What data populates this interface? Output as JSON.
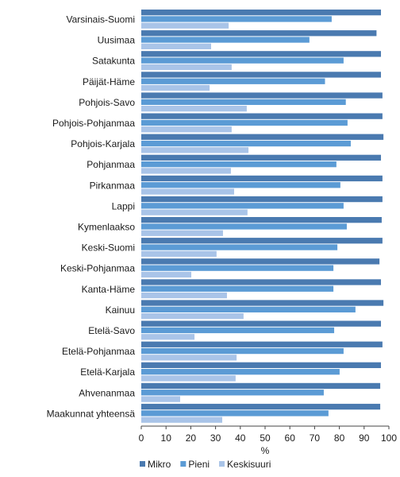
{
  "chart_data": {
    "type": "bar",
    "orientation": "horizontal",
    "categories": [
      "Varsinais-Suomi",
      "Uusimaa",
      "Satakunta",
      "Päijät-Häme",
      "Pohjois-Savo",
      "Pohjois-Pohjanmaa",
      "Pohjois-Karjala",
      "Pohjanmaa",
      "Pirkanmaa",
      "Lappi",
      "Kymenlaakso",
      "Keski-Suomi",
      "Keski-Pohjanmaa",
      "Kanta-Häme",
      "Kainuu",
      "Etelä-Savo",
      "Etelä-Pohjanmaa",
      "Etelä-Karjala",
      "Ahvenanmaa",
      "Maakunnat yhteensä"
    ],
    "series": [
      {
        "name": "Mikro",
        "color": "#4a7ab0",
        "values": [
          96.8,
          95,
          96.8,
          96.8,
          97.4,
          97.4,
          97.8,
          96.8,
          97.4,
          97.4,
          97.1,
          97.4,
          96.2,
          96.8,
          97.8,
          96.8,
          97.4,
          96.8,
          96.5,
          96.5
        ]
      },
      {
        "name": "Pieni",
        "color": "#5b9bd5",
        "values": [
          76.9,
          67.9,
          81.7,
          74.2,
          82.6,
          83.3,
          84.6,
          78.8,
          80.4,
          81.7,
          83,
          79.2,
          77.6,
          77.6,
          86.5,
          77.9,
          81.7,
          80.1,
          73.7,
          75.6
        ]
      },
      {
        "name": "Keskisuuri",
        "color": "#a9c4e8",
        "values": [
          35.3,
          28.2,
          36.5,
          27.6,
          42.6,
          36.5,
          43.3,
          36.2,
          37.5,
          42.9,
          33,
          30.4,
          20.2,
          34.6,
          41.3,
          21.5,
          38.5,
          38.1,
          15.7,
          32.7
        ]
      }
    ],
    "xlabel": "%",
    "ylabel": "",
    "xlim": [
      0,
      100
    ],
    "xticks": [
      "0",
      "10",
      "20",
      "30",
      "40",
      "50",
      "60",
      "70",
      "80",
      "90",
      "100"
    ],
    "grid": false,
    "legend_position": "bottom-left"
  }
}
